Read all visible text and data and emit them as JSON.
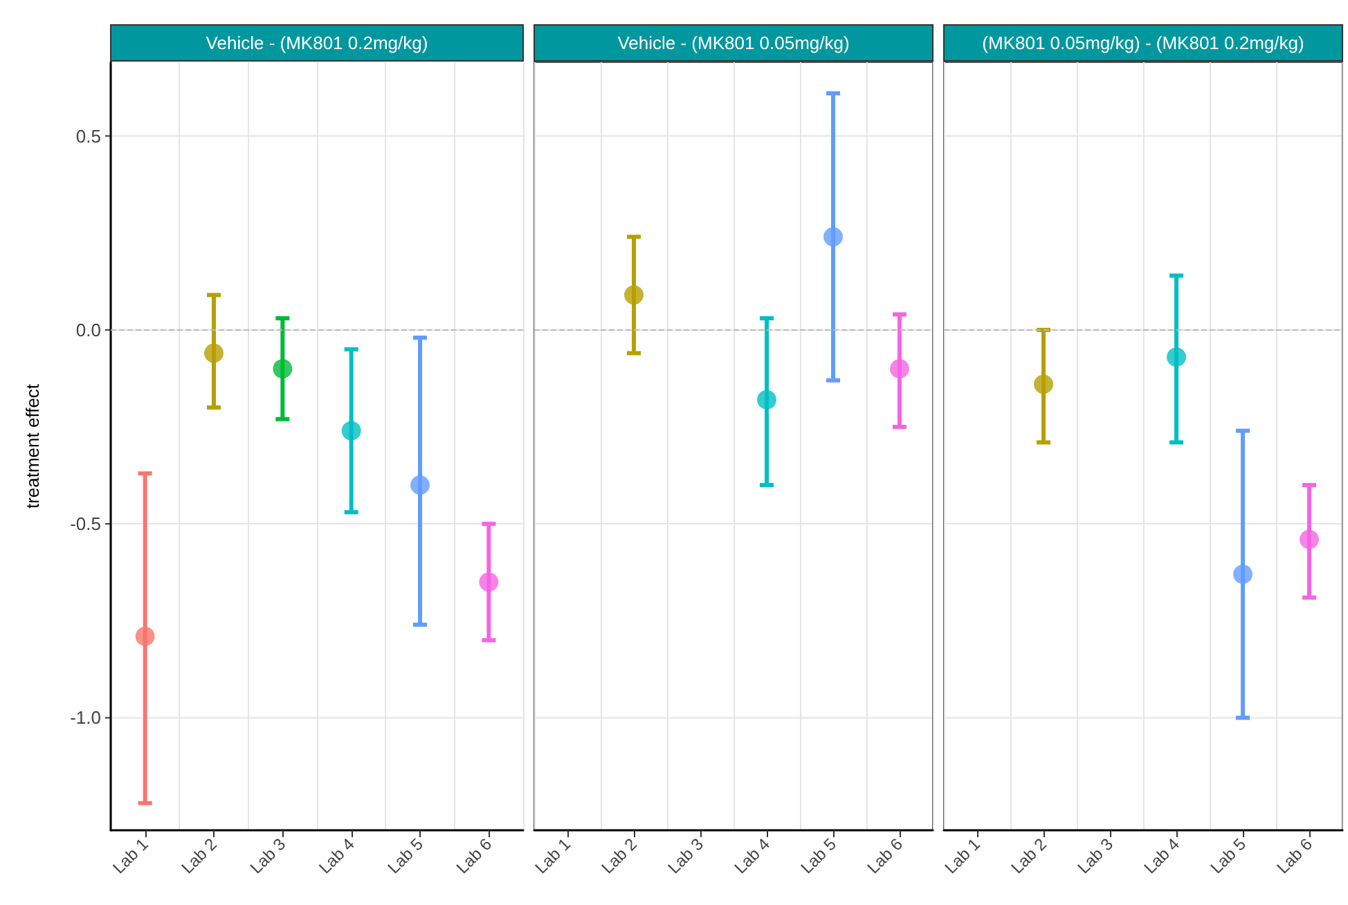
{
  "chart_data": [
    {
      "type": "scatter",
      "title": "Vehicle - (MK801 0.2mg/kg)",
      "ylabel": "treatment effect",
      "categories": [
        "Lab 1",
        "Lab 2",
        "Lab 3",
        "Lab 4",
        "Lab 5",
        "Lab 6"
      ],
      "values": [
        -0.79,
        -0.06,
        -0.1,
        -0.26,
        -0.4,
        -0.65
      ],
      "errors": [
        [
          -1.22,
          -0.37
        ],
        [
          -0.2,
          0.09
        ],
        [
          -0.23,
          0.03
        ],
        [
          -0.47,
          -0.05
        ],
        [
          -0.76,
          -0.02
        ],
        [
          -0.8,
          -0.5
        ]
      ],
      "colors": [
        "#f8766d",
        "#b79f00",
        "#00ba38",
        "#00bfc4",
        "#619cff",
        "#f564e3"
      ],
      "ylim": [
        -1.29,
        0.69
      ],
      "yticks": [
        {
          "value": -1,
          "label": "-1.0"
        },
        -0.5,
        {
          "value": 0,
          "label": "0.0"
        },
        0.5
      ],
      "ref_lines": [
        {
          "axis": "y",
          "value": 0,
          "color": "#bbbbbb",
          "line_style": "dashed"
        }
      ],
      "grid": true,
      "marker": "circle"
    },
    {
      "type": "scatter",
      "title": "Vehicle - (MK801 0.05mg/kg)",
      "categories": [
        "Lab 1",
        "Lab 2",
        "Lab 3",
        "Lab 4",
        "Lab 5",
        "Lab 6"
      ],
      "values": [
        null,
        0.09,
        null,
        -0.18,
        0.24,
        -0.1
      ],
      "errors": [
        null,
        [
          -0.06,
          0.24
        ],
        null,
        [
          -0.4,
          0.03
        ],
        [
          -0.13,
          0.61
        ],
        [
          -0.25,
          0.04
        ]
      ],
      "colors": [
        "#f8766d",
        "#b79f00",
        "#00ba38",
        "#00bfc4",
        "#619cff",
        "#f564e3"
      ],
      "ylim": [
        -1.29,
        0.69
      ],
      "yticks": [
        {
          "value": -1,
          "label": null
        },
        {
          "value": -0.5,
          "label": null
        },
        {
          "value": 0,
          "label": null
        },
        {
          "value": 0.5,
          "label": null
        }
      ],
      "ref_lines": [
        {
          "axis": "y",
          "value": 0,
          "color": "#bbbbbb",
          "line_style": "dashed"
        }
      ],
      "grid": true,
      "marker": "circle",
      "tick_labels": "x"
    },
    {
      "type": "scatter",
      "title": "(MK801 0.05mg/kg) - (MK801 0.2mg/kg)",
      "categories": [
        "Lab 1",
        "Lab 2",
        "Lab 3",
        "Lab 4",
        "Lab 5",
        "Lab 6"
      ],
      "values": [
        null,
        -0.14,
        null,
        -0.07,
        -0.63,
        -0.54
      ],
      "errors": [
        null,
        [
          -0.29,
          0
        ],
        null,
        [
          -0.29,
          0.14
        ],
        [
          -1,
          -0.26
        ],
        [
          -0.69,
          -0.4
        ]
      ],
      "colors": [
        "#f8766d",
        "#b79f00",
        "#00ba38",
        "#00bfc4",
        "#619cff",
        "#f564e3"
      ],
      "ylim": [
        -1.29,
        0.69
      ],
      "yticks": [
        {
          "value": -1,
          "label": null
        },
        {
          "value": -0.5,
          "label": null
        },
        {
          "value": 0,
          "label": null
        },
        {
          "value": 0.5,
          "label": null
        }
      ],
      "ref_lines": [
        {
          "axis": "y",
          "value": 0,
          "color": "#bbbbbb",
          "line_style": "dashed"
        }
      ],
      "grid": true,
      "marker": "circle",
      "tick_labels": "x"
    }
  ]
}
